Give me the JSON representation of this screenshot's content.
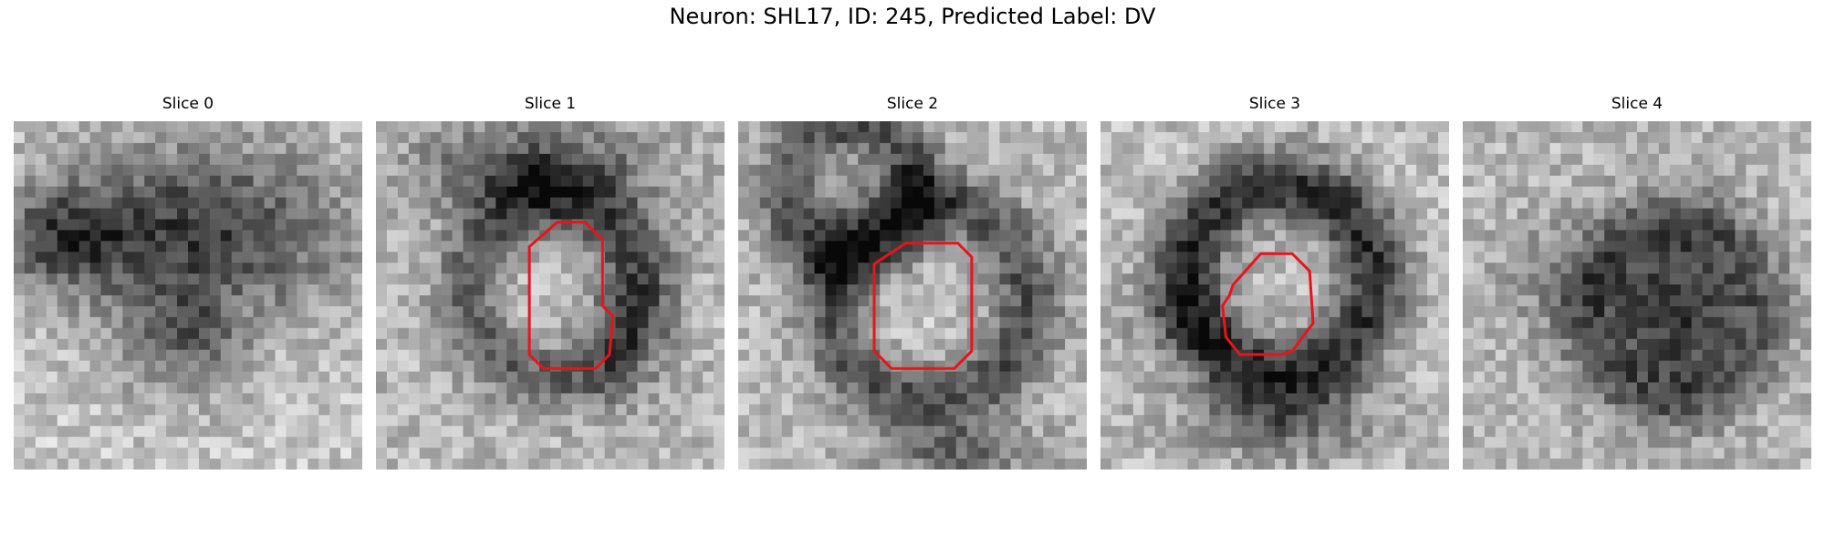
{
  "figure": {
    "title": "Neuron: SHL17, ID: 245, Predicted Label: DV"
  },
  "panels": [
    {
      "title": "Slice 0",
      "pattern": "blob-top",
      "seed": 11,
      "outline": false
    },
    {
      "title": "Slice 1",
      "pattern": "cell-tall",
      "seed": 23,
      "outline": true
    },
    {
      "title": "Slice 2",
      "pattern": "cell-wide",
      "seed": 37,
      "outline": true
    },
    {
      "title": "Slice 3",
      "pattern": "ring",
      "seed": 41,
      "outline": true
    },
    {
      "title": "Slice 4",
      "pattern": "blob-right",
      "seed": 53,
      "outline": false
    }
  ],
  "colors": {
    "outline": "#e8141b"
  }
}
